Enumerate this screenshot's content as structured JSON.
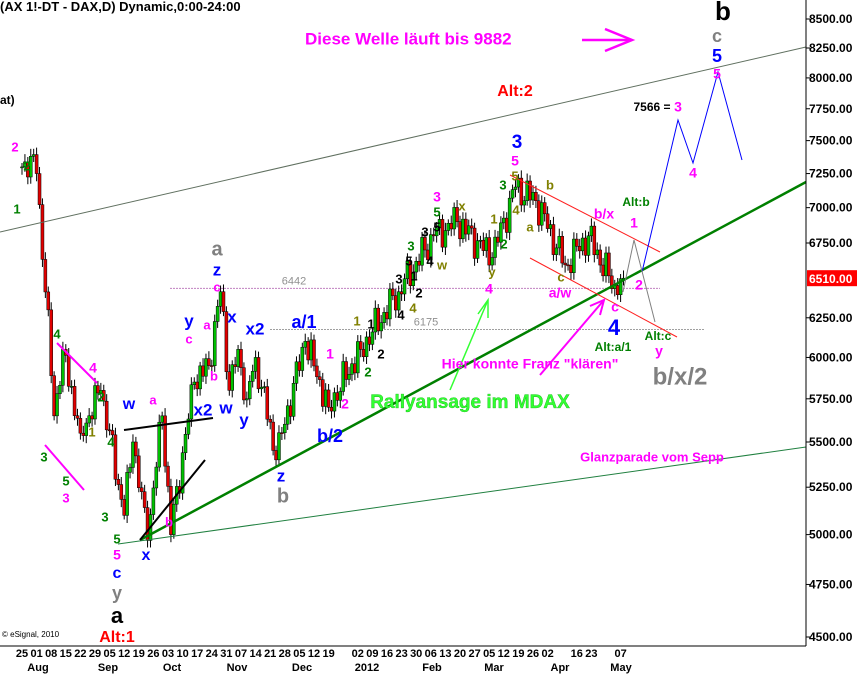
{
  "header": {
    "title": "(AX 1!-DT - DAX,D) Dynamic,0:00-24:00",
    "subtitle_fragment": "at)",
    "copyright": "© eSignal, 2010"
  },
  "chart_data": {
    "type": "candlestick",
    "symbol": "DAX",
    "interval": "Daily",
    "y_scale": "log",
    "ylim": [
      4500,
      8500
    ],
    "y_ticks": [
      "8500.00",
      "8250.00",
      "8000.00",
      "7750.00",
      "7500.00",
      "7250.00",
      "7000.00",
      "6750.00",
      "6250.00",
      "6000.00",
      "5750.00",
      "5500.00",
      "5250.00",
      "5000.00",
      "4750.00",
      "4500.00"
    ],
    "y_tick_values": [
      8500,
      8250,
      8000,
      7750,
      7500,
      7250,
      7000,
      6750,
      6250,
      6000,
      5750,
      5500,
      5250,
      5000,
      4750,
      4500
    ],
    "last_price": {
      "label": "6510.00",
      "value": 6510,
      "color": "#ff0000"
    },
    "x_day_labels": [
      "25",
      "01",
      "08",
      "15",
      "22",
      "29",
      "05",
      "12",
      "19",
      "26",
      "03",
      "10",
      "17",
      "24",
      "31",
      "07",
      "14",
      "21",
      "28",
      "05",
      "12",
      "19",
      "02",
      "09",
      "16",
      "23",
      "30",
      "06",
      "13",
      "20",
      "27",
      "05",
      "12",
      "19",
      "26",
      "02",
      "16",
      "23",
      "07"
    ],
    "x_month_labels": [
      "Aug",
      "Sep",
      "Oct",
      "Nov",
      "Dec",
      "2012",
      "Feb",
      "Mar",
      "Apr",
      "May"
    ],
    "price_path": [
      {
        "date": "2011-07-25",
        "price": 7300
      },
      {
        "date": "2011-07-28",
        "price": 7380
      },
      {
        "date": "2011-08-01",
        "price": 7250
      },
      {
        "date": "2011-08-09",
        "price": 5650
      },
      {
        "date": "2011-08-12",
        "price": 6050
      },
      {
        "date": "2011-08-22",
        "price": 5550
      },
      {
        "date": "2011-08-31",
        "price": 5800
      },
      {
        "date": "2011-09-12",
        "price": 5100
      },
      {
        "date": "2011-09-15",
        "price": 5500
      },
      {
        "date": "2011-09-22",
        "price": 4970
      },
      {
        "date": "2011-09-29",
        "price": 5650
      },
      {
        "date": "2011-10-04",
        "price": 5000
      },
      {
        "date": "2011-10-14",
        "price": 5850
      },
      {
        "date": "2011-10-21",
        "price": 5950
      },
      {
        "date": "2011-10-27",
        "price": 6420
      },
      {
        "date": "2011-11-01",
        "price": 5800
      },
      {
        "date": "2011-11-04",
        "price": 6050
      },
      {
        "date": "2011-11-09",
        "price": 5750
      },
      {
        "date": "2011-11-14",
        "price": 6000
      },
      {
        "date": "2011-11-23",
        "price": 5400
      },
      {
        "date": "2011-12-07",
        "price": 6100
      },
      {
        "date": "2011-12-19",
        "price": 5700
      },
      {
        "date": "2012-01-03",
        "price": 6050
      },
      {
        "date": "2012-01-20",
        "price": 6420
      },
      {
        "date": "2012-02-07",
        "price": 6800
      },
      {
        "date": "2012-02-17",
        "price": 6900
      },
      {
        "date": "2012-03-06",
        "price": 6650
      },
      {
        "date": "2012-03-16",
        "price": 7150
      },
      {
        "date": "2012-03-27",
        "price": 7050
      },
      {
        "date": "2012-04-10",
        "price": 6600
      },
      {
        "date": "2012-04-20",
        "price": 6800
      },
      {
        "date": "2012-05-04",
        "price": 6400
      },
      {
        "date": "2012-05-08",
        "price": 6510
      }
    ],
    "levels": [
      {
        "label": "6442",
        "value": 6442,
        "color": "#c080c0"
      },
      {
        "label": "6175",
        "value": 6175,
        "color": "#a0a0a0"
      }
    ],
    "colors": {
      "up": "#00c000",
      "down": "#e00000",
      "projection_main": "#0000ff",
      "projection_alt": "#808080",
      "trendline": "#008000"
    }
  },
  "annotations": [
    {
      "text": "Diese Welle läuft bis 9882",
      "color": "#ff00ff"
    },
    {
      "text": "Alt:2",
      "color": "#ff0000"
    },
    {
      "text": "7566 =",
      "color": "#000000"
    },
    {
      "text": "3",
      "color": "#ff00ff"
    },
    {
      "text": "4",
      "color": "#ff00ff"
    },
    {
      "text": "b",
      "color": "#000000"
    },
    {
      "text": "c",
      "color": "#808080"
    },
    {
      "text": "5",
      "color": "#0000ff"
    },
    {
      "text": "5",
      "color": "#ff00ff"
    },
    {
      "text": "Hier konnte Franz \"klären\"",
      "color": "#ff00ff"
    },
    {
      "text": "Rallyansage im MDAX",
      "color": "#33ff33"
    },
    {
      "text": "Glanzparade vom Sepp",
      "color": "#ff00ff"
    },
    {
      "text": "b/x/2",
      "color": "#808080"
    },
    {
      "text": "2",
      "color": "#ff00ff"
    },
    {
      "text": "2",
      "color": "#008000"
    },
    {
      "text": "1",
      "color": "#008000"
    },
    {
      "text": "a",
      "color": "#808080"
    },
    {
      "text": "z",
      "color": "#0000ff"
    },
    {
      "text": "c",
      "color": "#ff00ff"
    },
    {
      "text": "4",
      "color": "#008000"
    },
    {
      "text": "4",
      "color": "#ff00ff"
    },
    {
      "text": "2",
      "color": "#008000"
    },
    {
      "text": "3",
      "color": "#008000"
    },
    {
      "text": "5",
      "color": "#008000"
    },
    {
      "text": "3",
      "color": "#ff00ff"
    },
    {
      "text": "1",
      "color": "#808000"
    },
    {
      "text": "4",
      "color": "#008000"
    },
    {
      "text": "3",
      "color": "#008000"
    },
    {
      "text": "5",
      "color": "#008000"
    },
    {
      "text": "5",
      "color": "#ff00ff"
    },
    {
      "text": "c",
      "color": "#0000ff"
    },
    {
      "text": "y",
      "color": "#808080"
    },
    {
      "text": "a",
      "color": "#000000"
    },
    {
      "text": "Alt:1",
      "color": "#ff0000"
    },
    {
      "text": "x",
      "color": "#0000ff"
    },
    {
      "text": "b",
      "color": "#ff00ff"
    },
    {
      "text": "w",
      "color": "#0000ff"
    },
    {
      "text": "a",
      "color": "#ff00ff"
    },
    {
      "text": "x2",
      "color": "#0000ff"
    },
    {
      "text": "w",
      "color": "#0000ff"
    },
    {
      "text": "y",
      "color": "#0000ff"
    },
    {
      "text": "c",
      "color": "#ff00ff"
    },
    {
      "text": "a",
      "color": "#ff00ff"
    },
    {
      "text": "b",
      "color": "#ff00ff"
    },
    {
      "text": "x",
      "color": "#0000ff"
    },
    {
      "text": "x2",
      "color": "#0000ff"
    },
    {
      "text": "y",
      "color": "#0000ff"
    },
    {
      "text": "z",
      "color": "#0000ff"
    },
    {
      "text": "b",
      "color": "#808080"
    },
    {
      "text": "a/1",
      "color": "#0000ff"
    },
    {
      "text": "b/2",
      "color": "#0000ff"
    },
    {
      "text": "1",
      "color": "#ff00ff"
    },
    {
      "text": "2",
      "color": "#ff00ff"
    },
    {
      "text": "1",
      "color": "#808000"
    },
    {
      "text": "2",
      "color": "#008000"
    },
    {
      "text": "1",
      "color": "#000000"
    },
    {
      "text": "2",
      "color": "#000000"
    },
    {
      "text": "3",
      "color": "#000000"
    },
    {
      "text": "4",
      "color": "#000000"
    },
    {
      "text": "3",
      "color": "#008000"
    },
    {
      "text": "5",
      "color": "#000000"
    },
    {
      "text": "1",
      "color": "#000000"
    },
    {
      "text": "2",
      "color": "#000000"
    },
    {
      "text": "4",
      "color": "#808000"
    },
    {
      "text": "3",
      "color": "#000000"
    },
    {
      "text": "4",
      "color": "#000000"
    },
    {
      "text": "w",
      "color": "#808000"
    },
    {
      "text": "3",
      "color": "#ff00ff"
    },
    {
      "text": "5",
      "color": "#008000"
    },
    {
      "text": "5",
      "color": "#000000"
    },
    {
      "text": "x",
      "color": "#808000"
    },
    {
      "text": "1",
      "color": "#808000"
    },
    {
      "text": "2",
      "color": "#008000"
    },
    {
      "text": "y",
      "color": "#808000"
    },
    {
      "text": "4",
      "color": "#ff00ff"
    },
    {
      "text": "3",
      "color": "#0000ff"
    },
    {
      "text": "5",
      "color": "#ff00ff"
    },
    {
      "text": "5",
      "color": "#808000"
    },
    {
      "text": "3",
      "color": "#008000"
    },
    {
      "text": "4",
      "color": "#808000"
    },
    {
      "text": "a",
      "color": "#808000"
    },
    {
      "text": "b",
      "color": "#808000"
    },
    {
      "text": "c",
      "color": "#808000"
    },
    {
      "text": "a/w",
      "color": "#ff00ff"
    },
    {
      "text": "b/x",
      "color": "#ff00ff"
    },
    {
      "text": "1",
      "color": "#ff00ff"
    },
    {
      "text": "Alt:b",
      "color": "#008000"
    },
    {
      "text": "2",
      "color": "#ff00ff"
    },
    {
      "text": "c",
      "color": "#ff00ff"
    },
    {
      "text": "4",
      "color": "#0000ff"
    },
    {
      "text": "Alt:a/1",
      "color": "#008000"
    },
    {
      "text": "Alt:c",
      "color": "#008000"
    },
    {
      "text": "y",
      "color": "#ff00ff"
    }
  ]
}
